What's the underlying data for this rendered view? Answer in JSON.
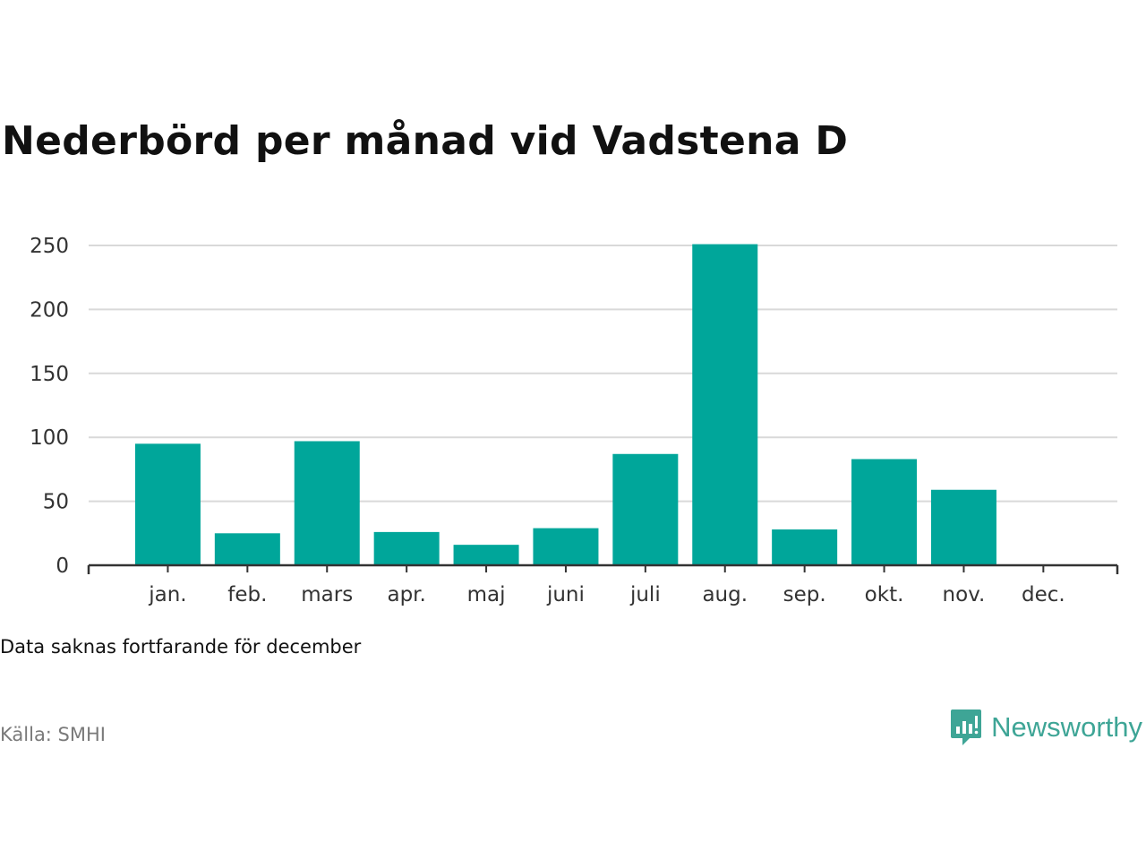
{
  "title": "Nederbörd per månad vid Vadstena D",
  "note": "Data saknas fortfarande för december",
  "source": "Källa: SMHI",
  "brand": {
    "name": "Newsworthy",
    "icon": "newsworthy-logo-icon",
    "color": "#3ea596"
  },
  "colors": {
    "bar": "#00a69a",
    "grid": "#d9d9d9",
    "axis": "#333333"
  },
  "chart_data": {
    "type": "bar",
    "title": "Nederbörd per månad vid Vadstena D",
    "xlabel": "",
    "ylabel": "",
    "categories": [
      "jan.",
      "feb.",
      "mars",
      "apr.",
      "maj",
      "juni",
      "juli",
      "aug.",
      "sep.",
      "okt.",
      "nov.",
      "dec."
    ],
    "values": [
      95,
      25,
      97,
      26,
      16,
      29,
      87,
      251,
      28,
      83,
      59,
      null
    ],
    "ylim": [
      0,
      250
    ],
    "yticks": [
      0,
      50,
      100,
      150,
      200,
      250
    ],
    "grid": true,
    "legend": "none"
  }
}
